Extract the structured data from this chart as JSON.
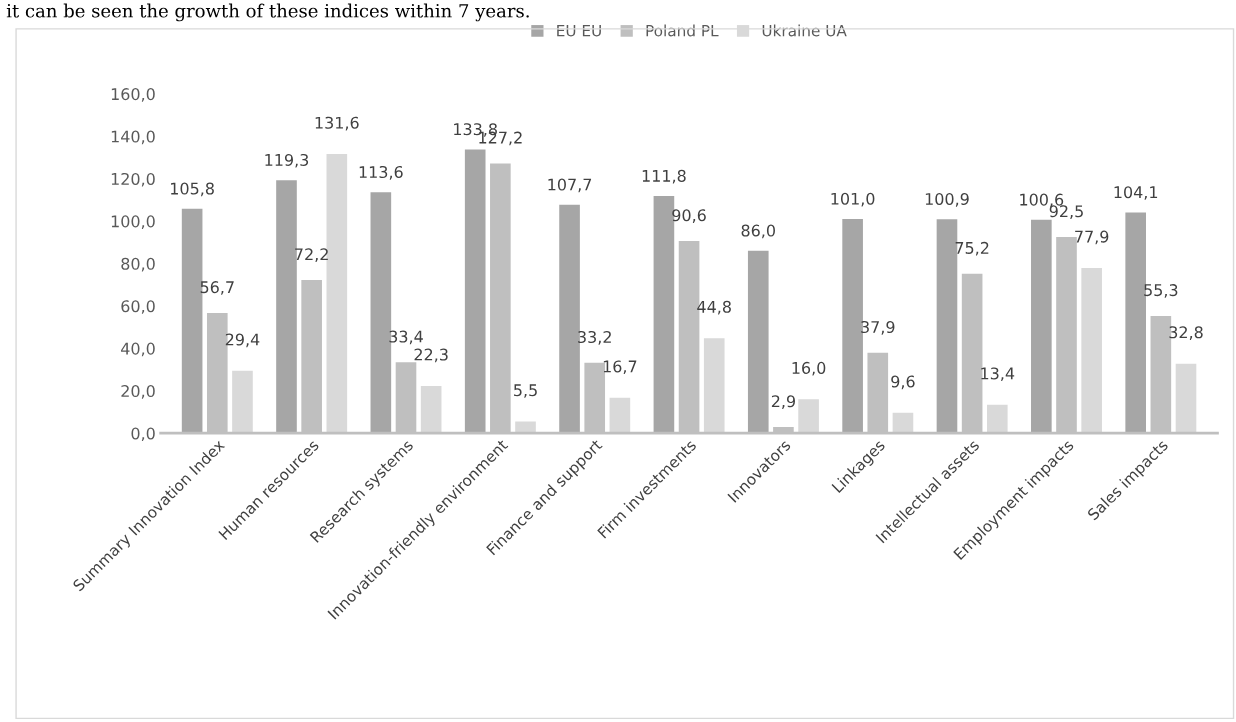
{
  "chart_data": {
    "type": "bar",
    "annotations": [
      "it can be seen the growth of these indices within 7 years."
    ],
    "categories": [
      "Summary Innovation Index",
      "Human resources",
      "Research systems",
      "Innovation-friendly environment",
      "Finance and support",
      "Firm investments",
      "Innovators",
      "Linkages",
      "Intellectual assets",
      "Employment impacts",
      "Sales impacts"
    ],
    "series": [
      {
        "name": "EU EU",
        "color": "#a6a6a6",
        "values": [
          105.8,
          119.3,
          113.6,
          133.8,
          107.7,
          111.8,
          86.0,
          101.0,
          100.9,
          100.6,
          104.1
        ],
        "value_labels": [
          "105,8",
          "119,3",
          "113,6",
          "133,8",
          "107,7",
          "111,8",
          "86,0",
          "101,0",
          "100,9",
          "100,6",
          "104,1"
        ]
      },
      {
        "name": "Poland PL",
        "color": "#bfbfbf",
        "values": [
          56.7,
          72.2,
          33.4,
          127.2,
          33.2,
          90.6,
          2.9,
          37.9,
          75.2,
          92.5,
          55.3
        ],
        "value_labels": [
          "56,7",
          "72,2",
          "33,4",
          "127,2",
          "33,2",
          "90,6",
          "2,9",
          "37,9",
          "75,2",
          "92,5",
          "55,3"
        ]
      },
      {
        "name": "Ukraine UA",
        "color": "#d9d9d9",
        "values": [
          29.4,
          131.6,
          22.3,
          5.5,
          16.7,
          44.8,
          16.0,
          9.6,
          13.4,
          77.9,
          32.8
        ],
        "value_labels": [
          "29,4",
          "131,6",
          "22,3",
          "5,5",
          "16,7",
          "44,8",
          "16,0",
          "9,6",
          "13,4",
          "77,9",
          "32,8"
        ]
      }
    ],
    "ylim": [
      0,
      160
    ],
    "yticks": [
      {
        "value": 0,
        "label": "0,0"
      },
      {
        "value": 20,
        "label": "20,0"
      },
      {
        "value": 40,
        "label": "40,0"
      },
      {
        "value": 60,
        "label": "60,0"
      },
      {
        "value": 80,
        "label": "80,0"
      },
      {
        "value": 100,
        "label": "100,0"
      },
      {
        "value": 120,
        "label": "120,0"
      },
      {
        "value": 140,
        "label": "140,0"
      },
      {
        "value": 160,
        "label": "160,0"
      }
    ],
    "grid": false,
    "legend": "top"
  }
}
